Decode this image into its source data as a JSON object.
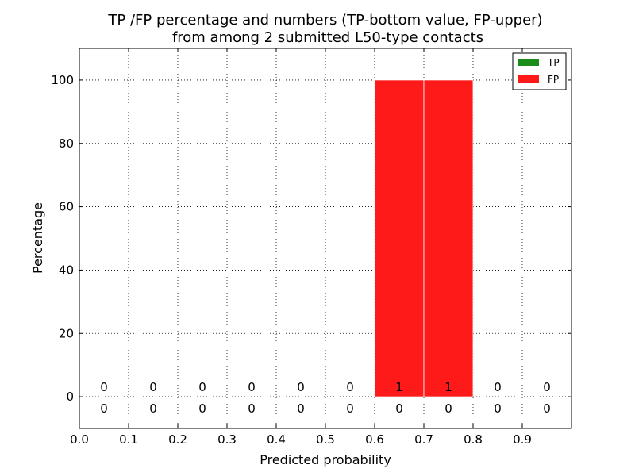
{
  "chart_data": {
    "type": "bar",
    "title_line1": "TP /FP percentage and numbers (TP-bottom value, FP-upper)",
    "title_line2": "from among 2 submitted L50-type contacts",
    "xlabel": "Predicted probability",
    "ylabel": "Percentage",
    "xlim": [
      0.0,
      1.0
    ],
    "ylim": [
      -10,
      110
    ],
    "xticks": [
      "0.0",
      "0.1",
      "0.2",
      "0.3",
      "0.4",
      "0.5",
      "0.6",
      "0.7",
      "0.8",
      "0.9"
    ],
    "yticks": [
      "0",
      "20",
      "40",
      "60",
      "80",
      "100"
    ],
    "grid": true,
    "legend_position": "top-right",
    "bins": [
      {
        "bin_start": 0.0,
        "tp_pct": 0,
        "fp_pct": 0,
        "tp_count": "0",
        "fp_count": "0"
      },
      {
        "bin_start": 0.1,
        "tp_pct": 0,
        "fp_pct": 0,
        "tp_count": "0",
        "fp_count": "0"
      },
      {
        "bin_start": 0.2,
        "tp_pct": 0,
        "fp_pct": 0,
        "tp_count": "0",
        "fp_count": "0"
      },
      {
        "bin_start": 0.3,
        "tp_pct": 0,
        "fp_pct": 0,
        "tp_count": "0",
        "fp_count": "0"
      },
      {
        "bin_start": 0.4,
        "tp_pct": 0,
        "fp_pct": 0,
        "tp_count": "0",
        "fp_count": "0"
      },
      {
        "bin_start": 0.5,
        "tp_pct": 0,
        "fp_pct": 0,
        "tp_count": "0",
        "fp_count": "0"
      },
      {
        "bin_start": 0.6,
        "tp_pct": 0,
        "fp_pct": 100,
        "tp_count": "0",
        "fp_count": "1"
      },
      {
        "bin_start": 0.7,
        "tp_pct": 0,
        "fp_pct": 100,
        "tp_count": "0",
        "fp_count": "1"
      },
      {
        "bin_start": 0.8,
        "tp_pct": 0,
        "fp_pct": 0,
        "tp_count": "0",
        "fp_count": "0"
      },
      {
        "bin_start": 0.9,
        "tp_pct": 0,
        "fp_pct": 0,
        "tp_count": "0",
        "fp_count": "0"
      }
    ],
    "bin_width": 0.1,
    "legend": [
      {
        "name": "TP",
        "color": "#1a8c1a"
      },
      {
        "name": "FP",
        "color": "#ff1a1a"
      }
    ]
  }
}
